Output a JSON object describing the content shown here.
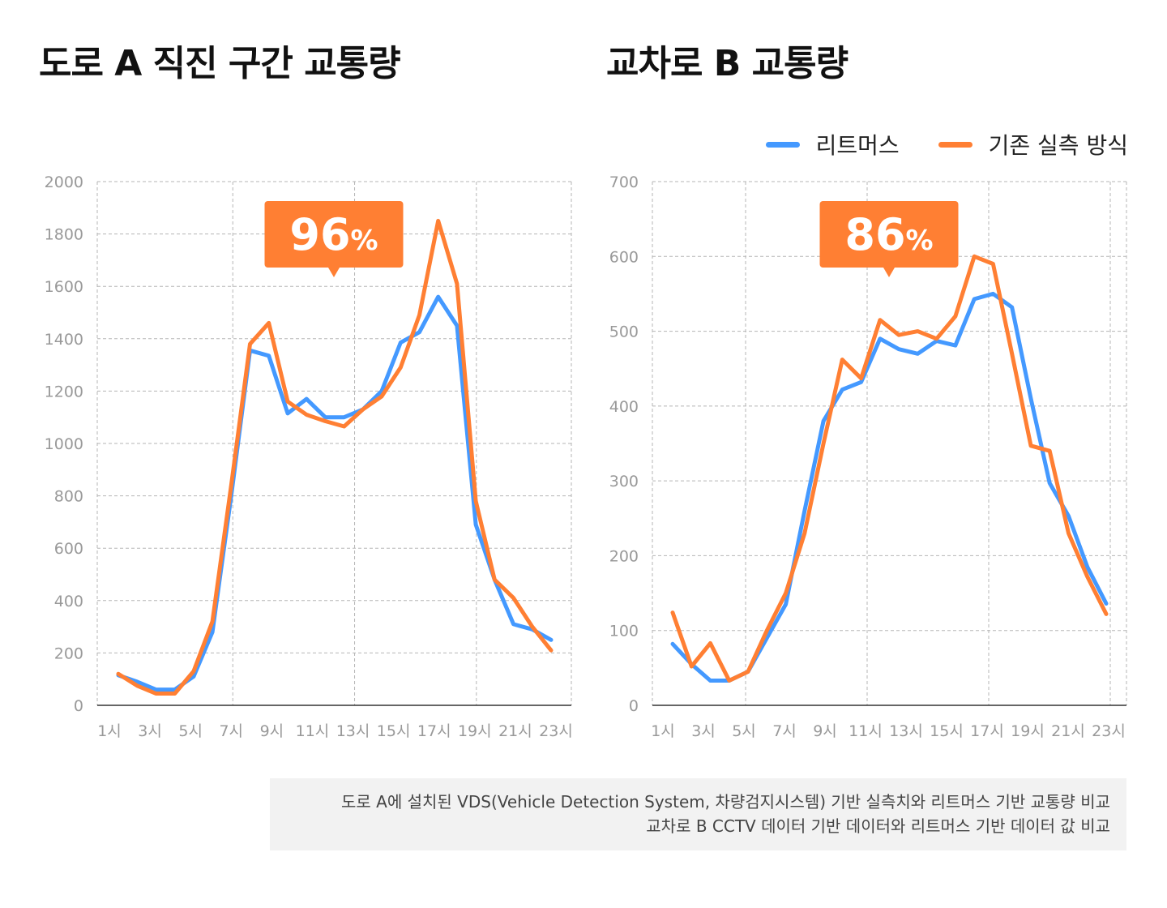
{
  "charts": [
    {
      "title": "도로 A 직진 구간 교통량",
      "badge": "96",
      "badge_unit": "%",
      "chart_data": {
        "type": "line",
        "x": [
          1,
          2,
          3,
          4,
          5,
          6,
          7,
          8,
          9,
          10,
          11,
          12,
          13,
          14,
          15,
          16,
          17,
          18,
          19,
          20,
          21,
          22,
          23,
          24
        ],
        "xtick_labels": [
          "1시",
          "3시",
          "5시",
          "7시",
          "9시",
          "11시",
          "13시",
          "15시",
          "17시",
          "19시",
          "21시",
          "23시"
        ],
        "yticks": [
          0,
          200,
          400,
          600,
          800,
          1000,
          1200,
          1400,
          1600,
          1800,
          2000
        ],
        "ylim": [
          0,
          2000
        ],
        "grid": true,
        "series": [
          {
            "name": "리트머스",
            "color": "#4499FF",
            "values": [
              115,
              90,
              60,
              60,
              110,
              280,
              800,
              1355,
              1335,
              1115,
              1170,
              1100,
              1100,
              1130,
              1200,
              1385,
              1425,
              1560,
              1450,
              690,
              480,
              310,
              290,
              250
            ]
          },
          {
            "name": "기존 실측 방식",
            "color": "#FF7F33",
            "values": [
              120,
              75,
              45,
              45,
              130,
              320,
              840,
              1380,
              1460,
              1160,
              1110,
              1085,
              1065,
              1130,
              1180,
              1290,
              1490,
              1850,
              1610,
              780,
              480,
              410,
              300,
              210
            ]
          }
        ]
      }
    },
    {
      "title": "교차로 B 교통량",
      "badge": "86",
      "badge_unit": "%",
      "chart_data": {
        "type": "line",
        "x": [
          1,
          2,
          3,
          4,
          5,
          6,
          7,
          8,
          9,
          10,
          11,
          12,
          13,
          14,
          15,
          16,
          17,
          18,
          19,
          20,
          21,
          22,
          23,
          24
        ],
        "xtick_labels": [
          "1시",
          "3시",
          "5시",
          "7시",
          "9시",
          "11시",
          "13시",
          "15시",
          "17시",
          "19시",
          "21시",
          "23시"
        ],
        "yticks": [
          0,
          100,
          200,
          300,
          400,
          500,
          600,
          700
        ],
        "ylim": [
          0,
          700
        ],
        "grid": true,
        "series": [
          {
            "name": "리트머스",
            "color": "#4499FF",
            "values": [
              82,
              55,
              33,
              33,
              45,
              90,
              135,
              260,
              380,
              422,
              432,
              490,
              476,
              470,
              487,
              481,
              543,
              550,
              532,
              410,
              297,
              253,
              185,
              136
            ]
          },
          {
            "name": "기존 실측 방식",
            "color": "#FF7F33",
            "values": [
              124,
              52,
              83,
              33,
              45,
              100,
              150,
              230,
              350,
              462,
              437,
              515,
              495,
              500,
              490,
              520,
              600,
              590,
              470,
              347,
              340,
              230,
              172,
              122
            ]
          }
        ]
      }
    }
  ],
  "legend": [
    {
      "label": "리트머스",
      "color": "#4499FF"
    },
    {
      "label": "기존 실측 방식",
      "color": "#FF7F33"
    }
  ],
  "caption": {
    "line1": "도로 A에 설치된 VDS(Vehicle Detection System, 차량검지시스템) 기반 실측치와 리트머스 기반 교통량 비교",
    "line2": "교차로 B CCTV 데이터 기반 데이터와 리트머스 기반 데이터 값 비교"
  }
}
